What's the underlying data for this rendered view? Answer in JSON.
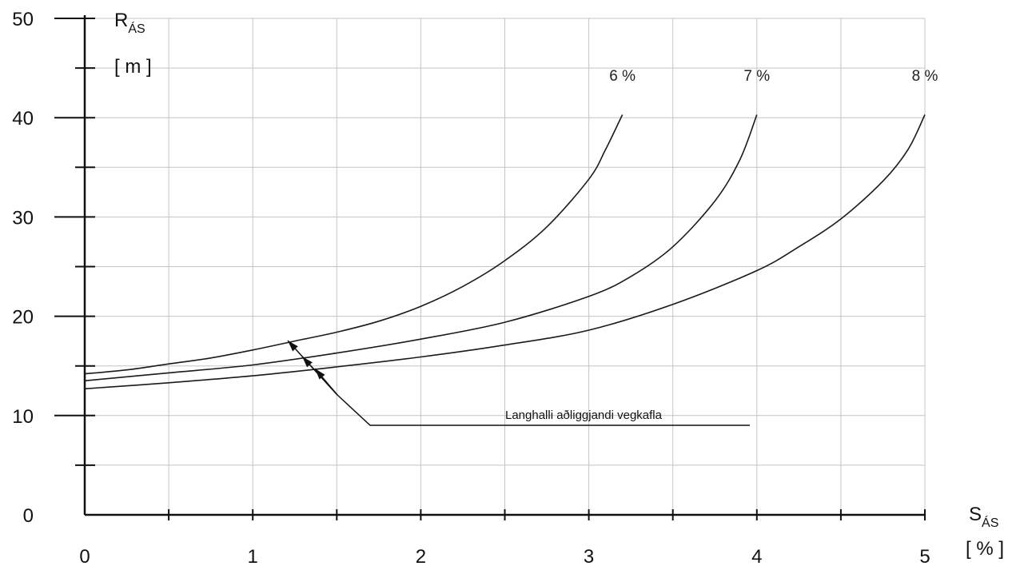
{
  "chart_data": {
    "type": "line",
    "title": "",
    "xlabel": "SÁS [ % ]",
    "ylabel": "RÁS [ m ]",
    "x_axis": {
      "main": "S",
      "sub": "ÁS",
      "unit": "[ % ]"
    },
    "y_axis": {
      "main": "R",
      "sub": "ÁS",
      "unit": "[ m ]"
    },
    "xlim": [
      0,
      5
    ],
    "ylim": [
      0,
      50
    ],
    "x_ticks": [
      "0",
      "1",
      "2",
      "3",
      "4",
      "5"
    ],
    "y_ticks": [
      "0",
      "10",
      "20",
      "30",
      "40",
      "50"
    ],
    "grid": true,
    "series": [
      {
        "name": "6 %",
        "x": [
          0,
          0.25,
          0.5,
          0.75,
          1.0,
          1.25,
          1.5,
          1.75,
          2.0,
          2.25,
          2.5,
          2.75,
          3.0,
          3.1,
          3.2
        ],
        "y": [
          14.2,
          14.6,
          15.2,
          15.8,
          16.6,
          17.5,
          18.4,
          19.5,
          21.0,
          23.0,
          25.6,
          29.0,
          33.8,
          36.8,
          40.3
        ]
      },
      {
        "name": "7 %",
        "x": [
          0,
          0.5,
          1.0,
          1.5,
          2.0,
          2.5,
          3.0,
          3.25,
          3.5,
          3.75,
          3.9,
          4.0
        ],
        "y": [
          13.5,
          14.3,
          15.1,
          16.3,
          17.7,
          19.4,
          22.0,
          24.0,
          27.0,
          31.6,
          35.8,
          40.3
        ]
      },
      {
        "name": "8 %",
        "x": [
          0,
          0.5,
          1.0,
          1.5,
          2.0,
          2.5,
          3.0,
          3.5,
          4.0,
          4.25,
          4.5,
          4.75,
          4.9,
          5.0
        ],
        "y": [
          12.7,
          13.3,
          14.0,
          14.9,
          15.9,
          17.1,
          18.6,
          21.2,
          24.6,
          27.0,
          29.8,
          33.6,
          36.8,
          40.3
        ]
      }
    ],
    "annotation": {
      "text": "Langhalli aðliggjandi vegkafla"
    }
  }
}
